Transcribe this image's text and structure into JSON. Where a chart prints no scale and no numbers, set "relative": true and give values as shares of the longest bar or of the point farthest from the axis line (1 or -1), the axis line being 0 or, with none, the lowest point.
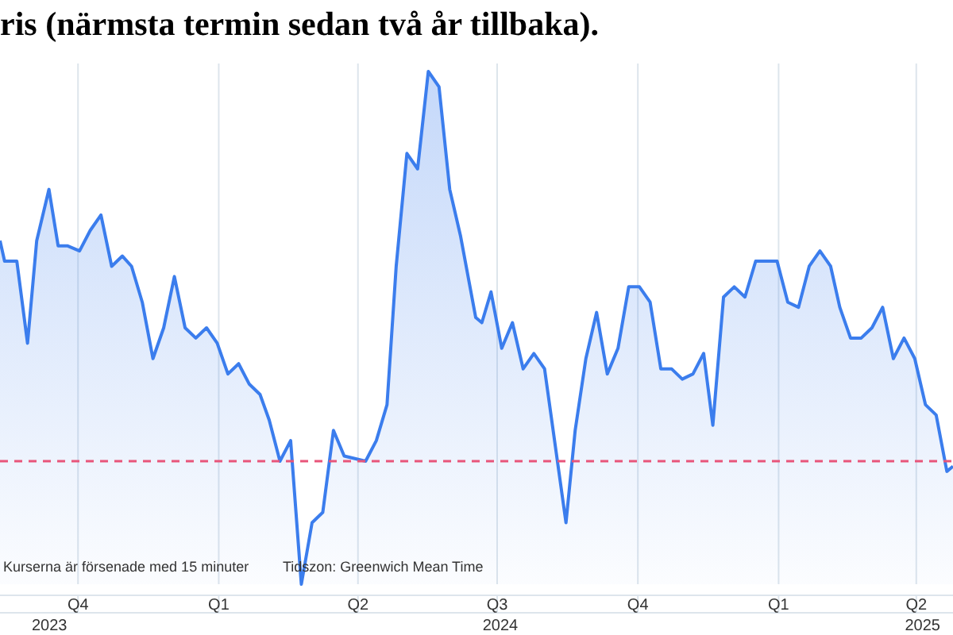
{
  "chart_data": {
    "type": "area",
    "title": "ris (närmsta termin sedan två år tillbaka).",
    "relative": true,
    "x": [
      "2023-08-11",
      "2023-08-14",
      "2023-08-22",
      "2023-08-29",
      "2023-09-04",
      "2023-09-12",
      "2023-09-18",
      "2023-09-24",
      "2023-10-02",
      "2023-10-09",
      "2023-10-16",
      "2023-10-23",
      "2023-10-30",
      "2023-11-05",
      "2023-11-12",
      "2023-11-19",
      "2023-11-26",
      "2023-12-03",
      "2023-12-10",
      "2023-12-17",
      "2023-12-24",
      "2023-12-31",
      "2024-01-07",
      "2024-01-14",
      "2024-01-21",
      "2024-01-28",
      "2024-02-03",
      "2024-02-10",
      "2024-02-17",
      "2024-02-24",
      "2024-03-02",
      "2024-03-09",
      "2024-03-16",
      "2024-03-23",
      "2024-04-06",
      "2024-04-13",
      "2024-04-20",
      "2024-04-26",
      "2024-05-03",
      "2024-05-10",
      "2024-05-17",
      "2024-05-24",
      "2024-05-31",
      "2024-06-07",
      "2024-06-17",
      "2024-06-21",
      "2024-06-27",
      "2024-07-04",
      "2024-07-11",
      "2024-07-18",
      "2024-07-25",
      "2024-08-01",
      "2024-08-15",
      "2024-08-21",
      "2024-08-28",
      "2024-09-04",
      "2024-09-11",
      "2024-09-18",
      "2024-09-25",
      "2024-10-02",
      "2024-10-09",
      "2024-10-16",
      "2024-10-23",
      "2024-10-30",
      "2024-11-06",
      "2024-11-13",
      "2024-11-19",
      "2024-11-26",
      "2024-12-03",
      "2024-12-10",
      "2024-12-17",
      "2024-12-24",
      "2024-12-31",
      "2025-01-07",
      "2025-01-14",
      "2025-01-21",
      "2025-01-28",
      "2025-02-04",
      "2025-02-10",
      "2025-02-17",
      "2025-02-24",
      "2025-03-03",
      "2025-03-10",
      "2025-03-17",
      "2025-03-24",
      "2025-03-31",
      "2025-04-07",
      "2025-04-14",
      "2025-04-21",
      "2025-04-25"
    ],
    "series": [
      {
        "color": "#3b7ded",
        "values": [
          0.67,
          0.63,
          0.63,
          0.47,
          0.67,
          0.77,
          0.66,
          0.66,
          0.65,
          0.69,
          0.72,
          0.62,
          0.64,
          0.62,
          0.55,
          0.44,
          0.5,
          0.6,
          0.5,
          0.48,
          0.5,
          0.47,
          0.41,
          0.43,
          0.39,
          0.37,
          0.32,
          0.24,
          0.28,
          0,
          0.12,
          0.14,
          0.3,
          0.25,
          0.24,
          0.28,
          0.35,
          0.62,
          0.84,
          0.81,
          1,
          0.97,
          0.77,
          0.68,
          0.52,
          0.51,
          0.57,
          0.46,
          0.51,
          0.42,
          0.45,
          0.42,
          0.12,
          0.3,
          0.44,
          0.53,
          0.41,
          0.46,
          0.58,
          0.58,
          0.55,
          0.42,
          0.42,
          0.4,
          0.41,
          0.45,
          0.31,
          0.56,
          0.58,
          0.56,
          0.63,
          0.63,
          0.63,
          0.55,
          0.54,
          0.62,
          0.65,
          0.62,
          0.54,
          0.48,
          0.48,
          0.5,
          0.54,
          0.44,
          0.48,
          0.44,
          0.35,
          0.33,
          0.22,
          0.23
        ]
      }
    ],
    "xlim": [
      "2023-08-11",
      "2025-04-25"
    ],
    "xticks": [
      {
        "value": "2023-10-01",
        "label": "Q4"
      },
      {
        "value": "2024-01-01",
        "label": "Q1"
      },
      {
        "value": "2024-04-01",
        "label": "Q2"
      },
      {
        "value": "2024-07-01",
        "label": "Q3"
      },
      {
        "value": "2024-10-01",
        "label": "Q4"
      },
      {
        "value": "2025-01-01",
        "label": "Q1"
      },
      {
        "value": "2025-04-01",
        "label": "Q2"
      }
    ],
    "grid": "x",
    "ref_lines": [
      {
        "axis": "y",
        "value": 0.24,
        "color": "#e8557a",
        "line_style": "dashed"
      }
    ],
    "annotations": [
      "Kurserna är försenade med 15 minuter",
      "Tidszon: Greenwich Mean Time",
      "2023",
      "2024",
      "2025"
    ]
  }
}
